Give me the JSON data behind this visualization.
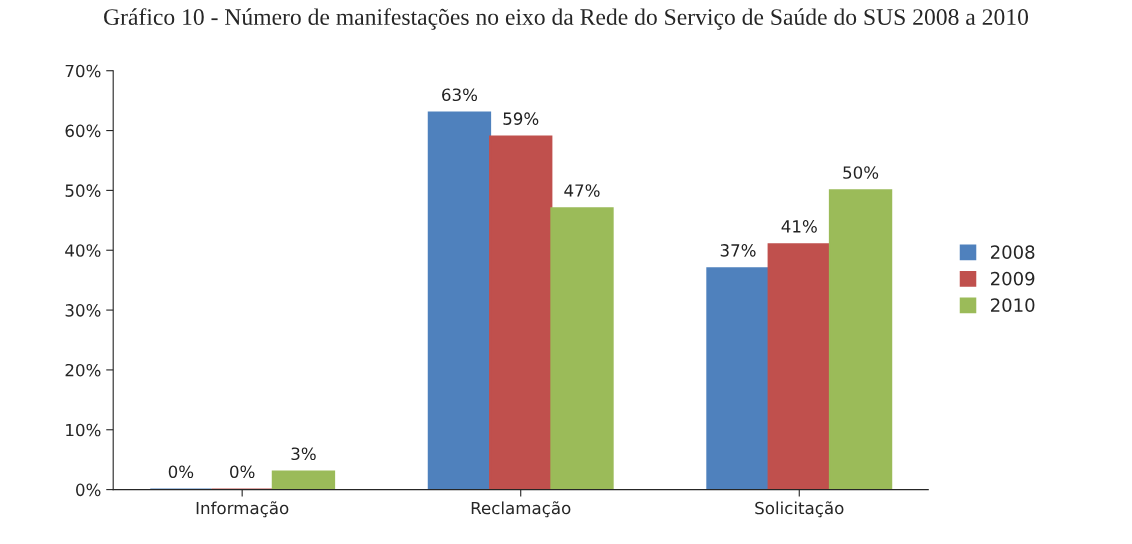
{
  "chart_data": {
    "type": "bar",
    "title": "Gráfico 10 - Número de manifestações no eixo da Rede do Serviço de Saúde do SUS 2008 a 2010",
    "categories": [
      "Informação",
      "Reclamação",
      "Solicitação"
    ],
    "series": [
      {
        "name": "2008",
        "color": "#4f81bd",
        "values": [
          0,
          63,
          37
        ],
        "value_labels": [
          "0%",
          "63%",
          "37%"
        ]
      },
      {
        "name": "2009",
        "color": "#c0504d",
        "values": [
          0,
          59,
          41
        ],
        "value_labels": [
          "0%",
          "59%",
          "41%"
        ]
      },
      {
        "name": "2010",
        "color": "#9bbb59",
        "values": [
          3,
          47,
          50
        ],
        "value_labels": [
          "3%",
          "47%",
          "50%"
        ]
      }
    ],
    "ylim": [
      0,
      70
    ],
    "yticks": [
      {
        "value": 0,
        "label": "0%"
      },
      {
        "value": 10,
        "label": "10%"
      },
      {
        "value": 20,
        "label": "20%"
      },
      {
        "value": 30,
        "label": "30%"
      },
      {
        "value": 40,
        "label": "40%"
      },
      {
        "value": 50,
        "label": "50%"
      },
      {
        "value": 60,
        "label": "60%"
      },
      {
        "value": 70,
        "label": "70%"
      }
    ],
    "grid": false,
    "legend": "right"
  }
}
